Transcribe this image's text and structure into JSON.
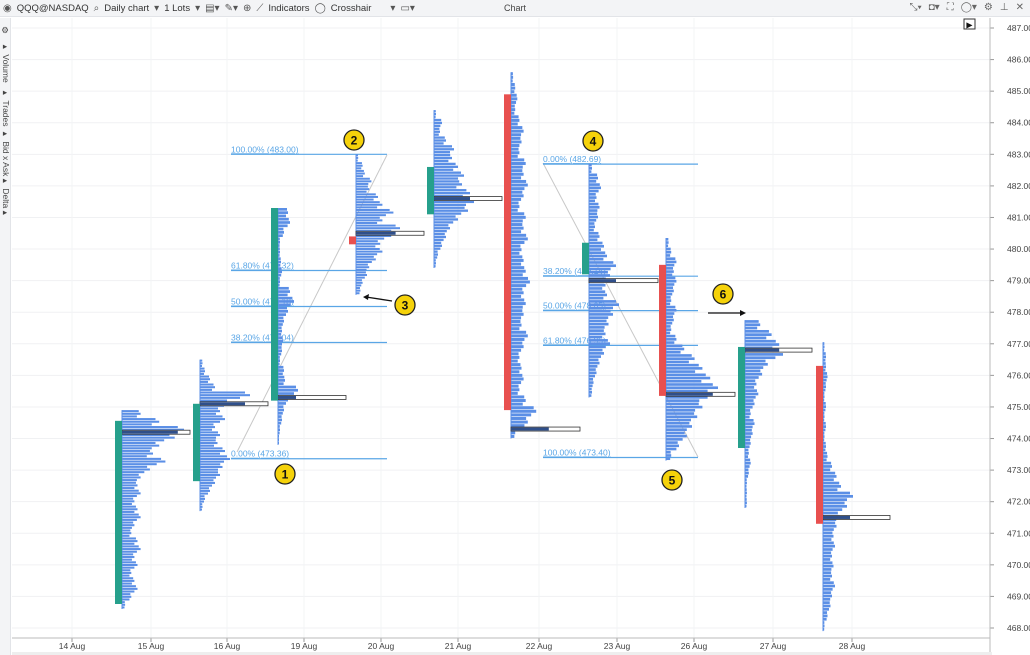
{
  "toolbar": {
    "symbol": "QQQ@NASDAQ",
    "timeframe": "Daily chart",
    "lots": "1 Lots",
    "indicators": "Indicators",
    "crosshair": "Crosshair"
  },
  "window": {
    "title": "Chart"
  },
  "sidebar": {
    "items": [
      "Volume",
      "Trades",
      "Bid x Ask",
      "Delta"
    ]
  },
  "colors": {
    "up": "#26a08c",
    "down": "#e8504f",
    "profile": "#5b8fe6",
    "poc": "#2f4f8a",
    "fib": "#5aa6e6",
    "marker": "#f5d20a"
  },
  "chart_data": {
    "type": "candlestick-volume-profile",
    "ylim": [
      468,
      487
    ],
    "y_ticks": [
      "487.00",
      "486.00",
      "485.00",
      "484.00",
      "483.00",
      "482.00",
      "481.00",
      "480.00",
      "479.00",
      "478.00",
      "477.00",
      "476.00",
      "475.00",
      "474.00",
      "473.00",
      "472.00",
      "471.00",
      "470.00",
      "469.00",
      "468.00"
    ],
    "x_ticks": [
      "14 Aug",
      "15 Aug",
      "16 Aug",
      "19 Aug",
      "20 Aug",
      "21 Aug",
      "22 Aug",
      "23 Aug",
      "26 Aug",
      "27 Aug",
      "28 Aug"
    ],
    "grid": true,
    "candles": [
      {
        "open": 468.76,
        "close": 474.56,
        "prof_high": 474.9,
        "prof_low": 468.6,
        "poc": 474.2,
        "profile": [
          0.3,
          0.6,
          1,
          0.85,
          0.6,
          0.5,
          0.7,
          0.45,
          0.3,
          0.25,
          0.3,
          0.2,
          0.25,
          0.3,
          0.2,
          0.15,
          0.25,
          0.3,
          0.2,
          0.25,
          0.15,
          0.2,
          0.25,
          0.15,
          0.05
        ]
      },
      {
        "open": 472.65,
        "close": 475.1,
        "prof_high": 476.5,
        "prof_low": 471.7,
        "poc": 475.1,
        "profile": [
          0.05,
          0.1,
          0.2,
          0.3,
          1,
          0.6,
          0.4,
          0.5,
          0.3,
          0.4,
          0.35,
          0.5,
          0.6,
          0.45,
          0.4,
          0.3,
          0.2,
          0.1,
          0.05
        ]
      },
      {
        "open": 475.2,
        "close": 481.3,
        "prof_high": 481.3,
        "prof_low": 473.8,
        "poc": 475.3,
        "profile": [
          0.5,
          0.6,
          0.3,
          0.1,
          0.1,
          0.15,
          0.2,
          0.1,
          0.6,
          0.8,
          0.5,
          0.3,
          0.2,
          0.25,
          0.2,
          0.1,
          0.3,
          0.35,
          1,
          0.5,
          0.3,
          0.2,
          0.1,
          0.05
        ]
      },
      {
        "open": 480.4,
        "close": 480.15,
        "prof_high": 483.0,
        "prof_low": 478.55,
        "poc": 480.5,
        "profile": [
          0.05,
          0.15,
          0.2,
          0.35,
          0.3,
          0.5,
          0.6,
          0.85,
          0.6,
          1,
          0.8,
          0.55,
          0.6,
          0.45,
          0.3,
          0.25,
          0.15,
          0.1
        ]
      },
      {
        "open": 481.1,
        "close": 482.6,
        "prof_high": 484.4,
        "prof_low": 479.4,
        "poc": 481.6,
        "profile": [
          0.05,
          0.2,
          0.15,
          0.3,
          0.5,
          0.45,
          0.6,
          0.75,
          0.7,
          0.9,
          1,
          0.85,
          0.6,
          0.4,
          0.3,
          0.2,
          0.1,
          0.05
        ]
      },
      {
        "open": 484.9,
        "close": 474.9,
        "prof_high": 485.6,
        "prof_low": 474.0,
        "poc": 474.3,
        "profile": [
          0.05,
          0.1,
          0.15,
          0.1,
          0.2,
          0.3,
          0.25,
          0.2,
          0.35,
          0.3,
          0.4,
          0.3,
          0.2,
          0.35,
          0.3,
          0.4,
          0.25,
          0.3,
          0.35,
          0.45,
          0.3,
          0.35,
          0.3,
          0.25,
          0.4,
          0.3,
          0.2,
          0.25,
          0.3,
          0.2,
          0.35,
          0.6,
          0.4,
          0.1
        ]
      },
      {
        "open": 479.2,
        "close": 480.2,
        "prof_high": 482.7,
        "prof_low": 475.3,
        "poc": 479.0,
        "profile": [
          0.1,
          0.3,
          0.4,
          0.25,
          0.35,
          0.3,
          0.2,
          0.35,
          0.5,
          0.6,
          0.9,
          0.7,
          0.55,
          0.6,
          1,
          0.8,
          0.65,
          0.55,
          0.7,
          0.5,
          0.35,
          0.25,
          0.15,
          0.1
        ]
      },
      {
        "open": 479.5,
        "close": 475.35,
        "prof_high": 480.35,
        "prof_low": 473.3,
        "poc": 475.4,
        "profile": [
          0.05,
          0.1,
          0.2,
          0.15,
          0.2,
          0.15,
          0.1,
          0.2,
          0.15,
          0.1,
          0.2,
          0.35,
          0.55,
          0.7,
          0.85,
          1,
          0.8,
          0.7,
          0.6,
          0.5,
          0.4,
          0.25,
          0.1
        ]
      },
      {
        "open": 473.7,
        "close": 476.9,
        "prof_high": 477.75,
        "prof_low": 471.8,
        "poc": 476.8,
        "profile": [
          0.4,
          0.7,
          0.9,
          1,
          0.6,
          0.45,
          0.3,
          0.35,
          0.25,
          0.15,
          0.25,
          0.2,
          0.15,
          0.1,
          0.15,
          0.1,
          0.05,
          0.05,
          0.05
        ]
      },
      {
        "open": 476.3,
        "close": 471.3,
        "prof_high": 477.05,
        "prof_low": 467.9,
        "poc": 471.5,
        "profile": [
          0.05,
          0.1,
          0.1,
          0.15,
          0.1,
          0.05,
          0.1,
          0.05,
          0.1,
          0.05,
          0.1,
          0.15,
          0.3,
          0.45,
          0.6,
          1,
          0.8,
          0.55,
          0.45,
          0.35,
          0.4,
          0.3,
          0.35,
          0.3,
          0.4,
          0.3,
          0.25,
          0.15,
          0.05
        ]
      }
    ],
    "fibonacci": [
      {
        "levels": [
          {
            "label": "100.00% (483.00)",
            "price": 483.0
          },
          {
            "label": "61.80% (479.32)",
            "price": 479.32
          },
          {
            "label": "50.00% (478.18)",
            "price": 478.18
          },
          {
            "label": "38.20% (477.04)",
            "price": 477.04
          },
          {
            "label": "0.00% (473.36)",
            "price": 473.36
          }
        ]
      },
      {
        "levels": [
          {
            "label": "0.00% (482.69)",
            "price": 482.69
          },
          {
            "label": "38.20% (479.14)",
            "price": 479.14
          },
          {
            "label": "50.00% (478.05)",
            "price": 478.05
          },
          {
            "label": "61.80% (476.95)",
            "price": 476.95
          },
          {
            "label": "100.00% (473.40)",
            "price": 473.4
          }
        ]
      }
    ],
    "markers": [
      "1",
      "2",
      "3",
      "4",
      "5",
      "6"
    ]
  }
}
